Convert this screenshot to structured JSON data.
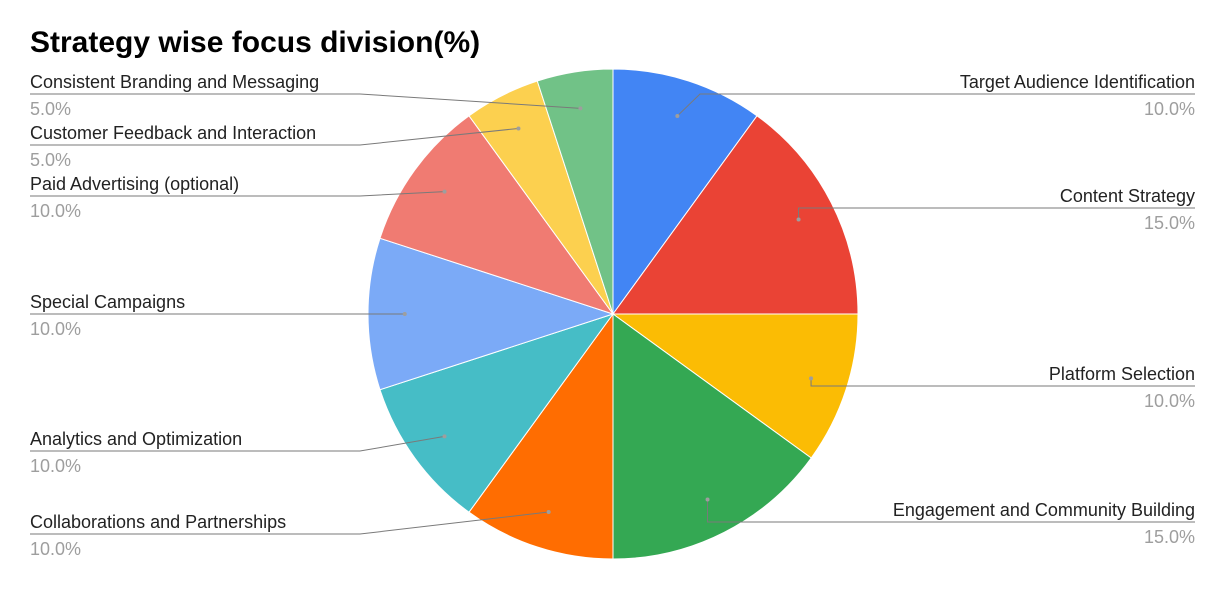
{
  "chart_data": {
    "type": "pie",
    "title": "Strategy wise focus division(%)",
    "slices": [
      {
        "label": "Target Audience Identification",
        "value": 10.0,
        "display": "10.0%",
        "color": "#4285F4"
      },
      {
        "label": "Content Strategy",
        "value": 15.0,
        "display": "15.0%",
        "color": "#EA4335"
      },
      {
        "label": "Platform Selection",
        "value": 10.0,
        "display": "10.0%",
        "color": "#FBBC04"
      },
      {
        "label": "Engagement and Community Building",
        "value": 15.0,
        "display": "15.0%",
        "color": "#34A853"
      },
      {
        "label": "Collaborations and Partnerships",
        "value": 10.0,
        "display": "10.0%",
        "color": "#FF6D01"
      },
      {
        "label": "Analytics and Optimization",
        "value": 10.0,
        "display": "10.0%",
        "color": "#46BDC6"
      },
      {
        "label": "Special Campaigns",
        "value": 10.0,
        "display": "10.0%",
        "color": "#7BAAF7"
      },
      {
        "label": "Paid Advertising (optional)",
        "value": 10.0,
        "display": "10.0%",
        "color": "#F07B72"
      },
      {
        "label": "Customer Feedback and Interaction",
        "value": 5.0,
        "display": "5.0%",
        "color": "#FCD04F"
      },
      {
        "label": "Consistent Branding and Messaging",
        "value": 5.0,
        "display": "5.0%",
        "color": "#71C287"
      }
    ],
    "legend": "none",
    "label_style": "outside labels with leader lines, name and percentage"
  }
}
